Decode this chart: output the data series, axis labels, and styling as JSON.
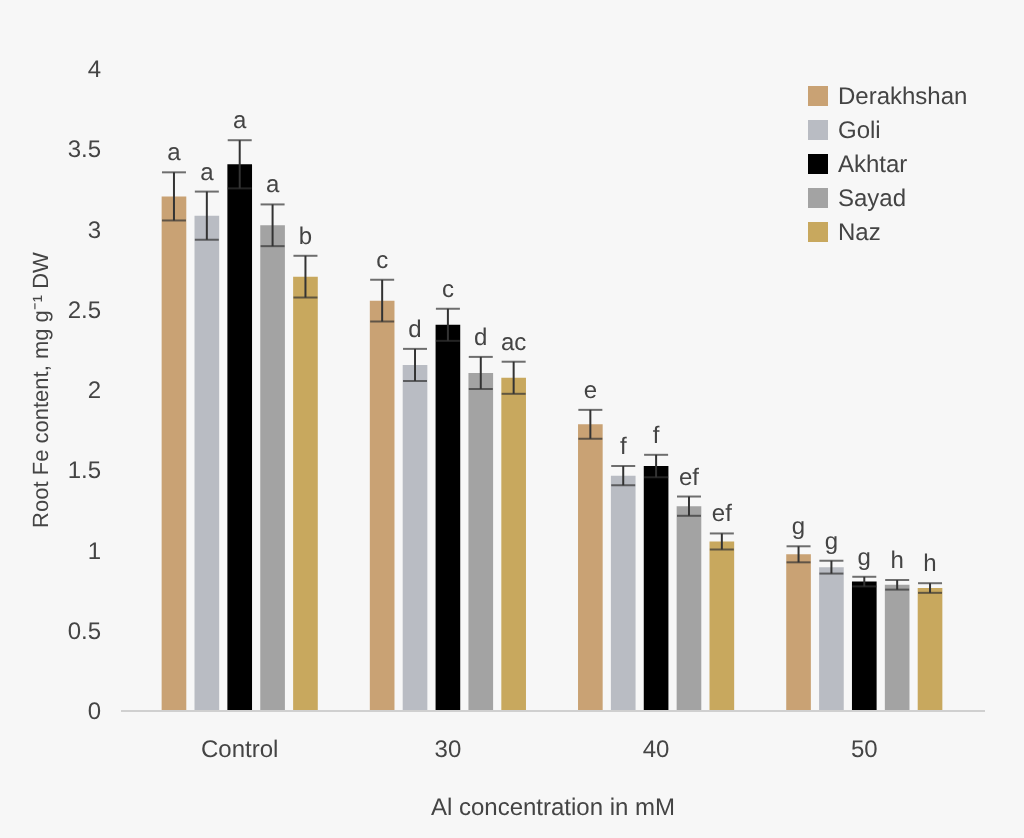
{
  "chart_data": {
    "type": "bar",
    "xlabel": "Al concentration in mM",
    "ylabel": "Root Fe content, mg g⁻¹ DW",
    "categories": [
      "Control",
      "30",
      "40",
      "50"
    ],
    "series": [
      {
        "name": "Derakhshan",
        "color": "#c9a274",
        "values": [
          3.2,
          2.55,
          1.78,
          0.97
        ],
        "errors": [
          0.15,
          0.13,
          0.09,
          0.05
        ],
        "value_labels": [
          "a",
          "c",
          "e",
          "g"
        ]
      },
      {
        "name": "Goli",
        "color": "#b9bcc3",
        "values": [
          3.08,
          2.15,
          1.46,
          0.89
        ],
        "errors": [
          0.15,
          0.1,
          0.06,
          0.04
        ],
        "value_labels": [
          "a",
          "d",
          "f",
          "g"
        ]
      },
      {
        "name": "Akhtar",
        "color": "#000000",
        "values": [
          3.4,
          2.4,
          1.52,
          0.8
        ],
        "errors": [
          0.15,
          0.1,
          0.07,
          0.03
        ],
        "value_labels": [
          "a",
          "c",
          "f",
          "g"
        ]
      },
      {
        "name": "Sayad",
        "color": "#a3a3a3",
        "values": [
          3.02,
          2.1,
          1.27,
          0.78
        ],
        "errors": [
          0.13,
          0.1,
          0.06,
          0.03
        ],
        "value_labels": [
          "a",
          "d",
          "ef",
          "h"
        ]
      },
      {
        "name": "Naz",
        "color": "#c8a85e",
        "values": [
          2.7,
          2.07,
          1.05,
          0.76
        ],
        "errors": [
          0.13,
          0.1,
          0.05,
          0.03
        ],
        "value_labels": [
          "b",
          "ac",
          "ef",
          "h"
        ]
      }
    ],
    "ylim": [
      0,
      4
    ],
    "yticks": [
      0,
      0.5,
      1,
      1.5,
      2,
      2.5,
      3,
      3.5,
      4
    ],
    "grid": false,
    "legend": "top right"
  }
}
